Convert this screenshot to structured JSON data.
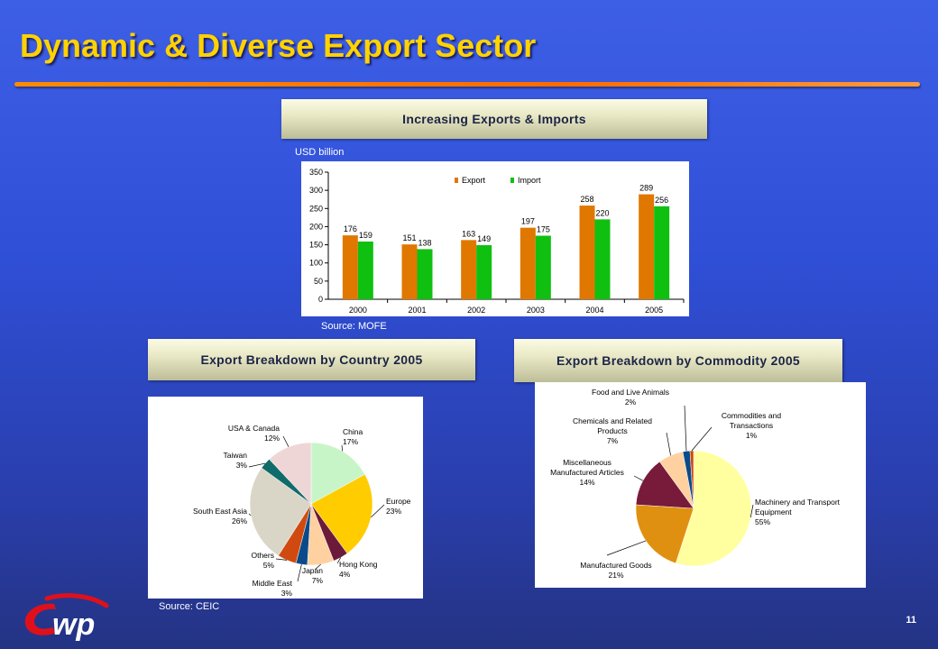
{
  "slide": {
    "title": "Dynamic & Diverse Export Sector",
    "page_number": "11"
  },
  "colors": {
    "title": "#ffd200",
    "rule": "#ff7a00",
    "export": "#e07800",
    "import": "#10c010"
  },
  "icons": {
    "logo": "cwp-logo"
  },
  "chart_data": [
    {
      "type": "bar",
      "title": "Increasing Exports & Imports",
      "ylabel": "USD billion",
      "source": "Source: MOFE",
      "categories": [
        "2000",
        "2001",
        "2002",
        "2003",
        "2004",
        "2005"
      ],
      "series": [
        {
          "name": "Export",
          "values": [
            176,
            151,
            163,
            197,
            258,
            289
          ]
        },
        {
          "name": "Import",
          "values": [
            159,
            138,
            149,
            175,
            220,
            256
          ]
        }
      ],
      "ylim": [
        0,
        350
      ],
      "yticks": [
        "0",
        "50",
        "100",
        "150",
        "200",
        "250",
        "300",
        "350"
      ],
      "legend": "top-right"
    },
    {
      "type": "pie",
      "title": "Export Breakdown by Country 2005",
      "source": "Source: CEIC",
      "slices": [
        {
          "label": "China",
          "pct": "17%",
          "value": 17,
          "color": "#c8f5c8"
        },
        {
          "label": "Europe",
          "pct": "23%",
          "value": 23,
          "color": "#ffcc00"
        },
        {
          "label": "Hong Kong",
          "pct": "4%",
          "value": 4,
          "color": "#6b1a3a"
        },
        {
          "label": "Japan",
          "pct": "7%",
          "value": 7,
          "color": "#ffd0a0"
        },
        {
          "label": "Middle East",
          "pct": "3%",
          "value": 3,
          "color": "#0a4a8a"
        },
        {
          "label": "Others",
          "pct": "5%",
          "value": 5,
          "color": "#d04a10"
        },
        {
          "label": "South East Asia",
          "pct": "26%",
          "value": 26,
          "color": "#d9d6c8"
        },
        {
          "label": "Taiwan",
          "pct": "3%",
          "value": 3,
          "color": "#106b6b"
        },
        {
          "label": "USA & Canada",
          "pct": "12%",
          "value": 12,
          "color": "#efd6d6"
        }
      ]
    },
    {
      "type": "pie",
      "title": "Export Breakdown by Commodity 2005",
      "slices": [
        {
          "label": "Machinery and Transport Equipment",
          "pct": "55%",
          "value": 55,
          "color": "#ffffa0"
        },
        {
          "label": "Manufactured Goods",
          "pct": "21%",
          "value": 21,
          "color": "#e09010"
        },
        {
          "label": "Miscellaneous Manufactured Articles",
          "pct": "14%",
          "value": 14,
          "color": "#781a3a"
        },
        {
          "label": "Chemicals and Related Products",
          "pct": "7%",
          "value": 7,
          "color": "#ffd0a0"
        },
        {
          "label": "Food and Live Animals",
          "pct": "2%",
          "value": 2,
          "color": "#0a4a8a"
        },
        {
          "label": "Commodities and Transactions",
          "pct": "1%",
          "value": 1,
          "color": "#d04a10"
        }
      ]
    }
  ]
}
